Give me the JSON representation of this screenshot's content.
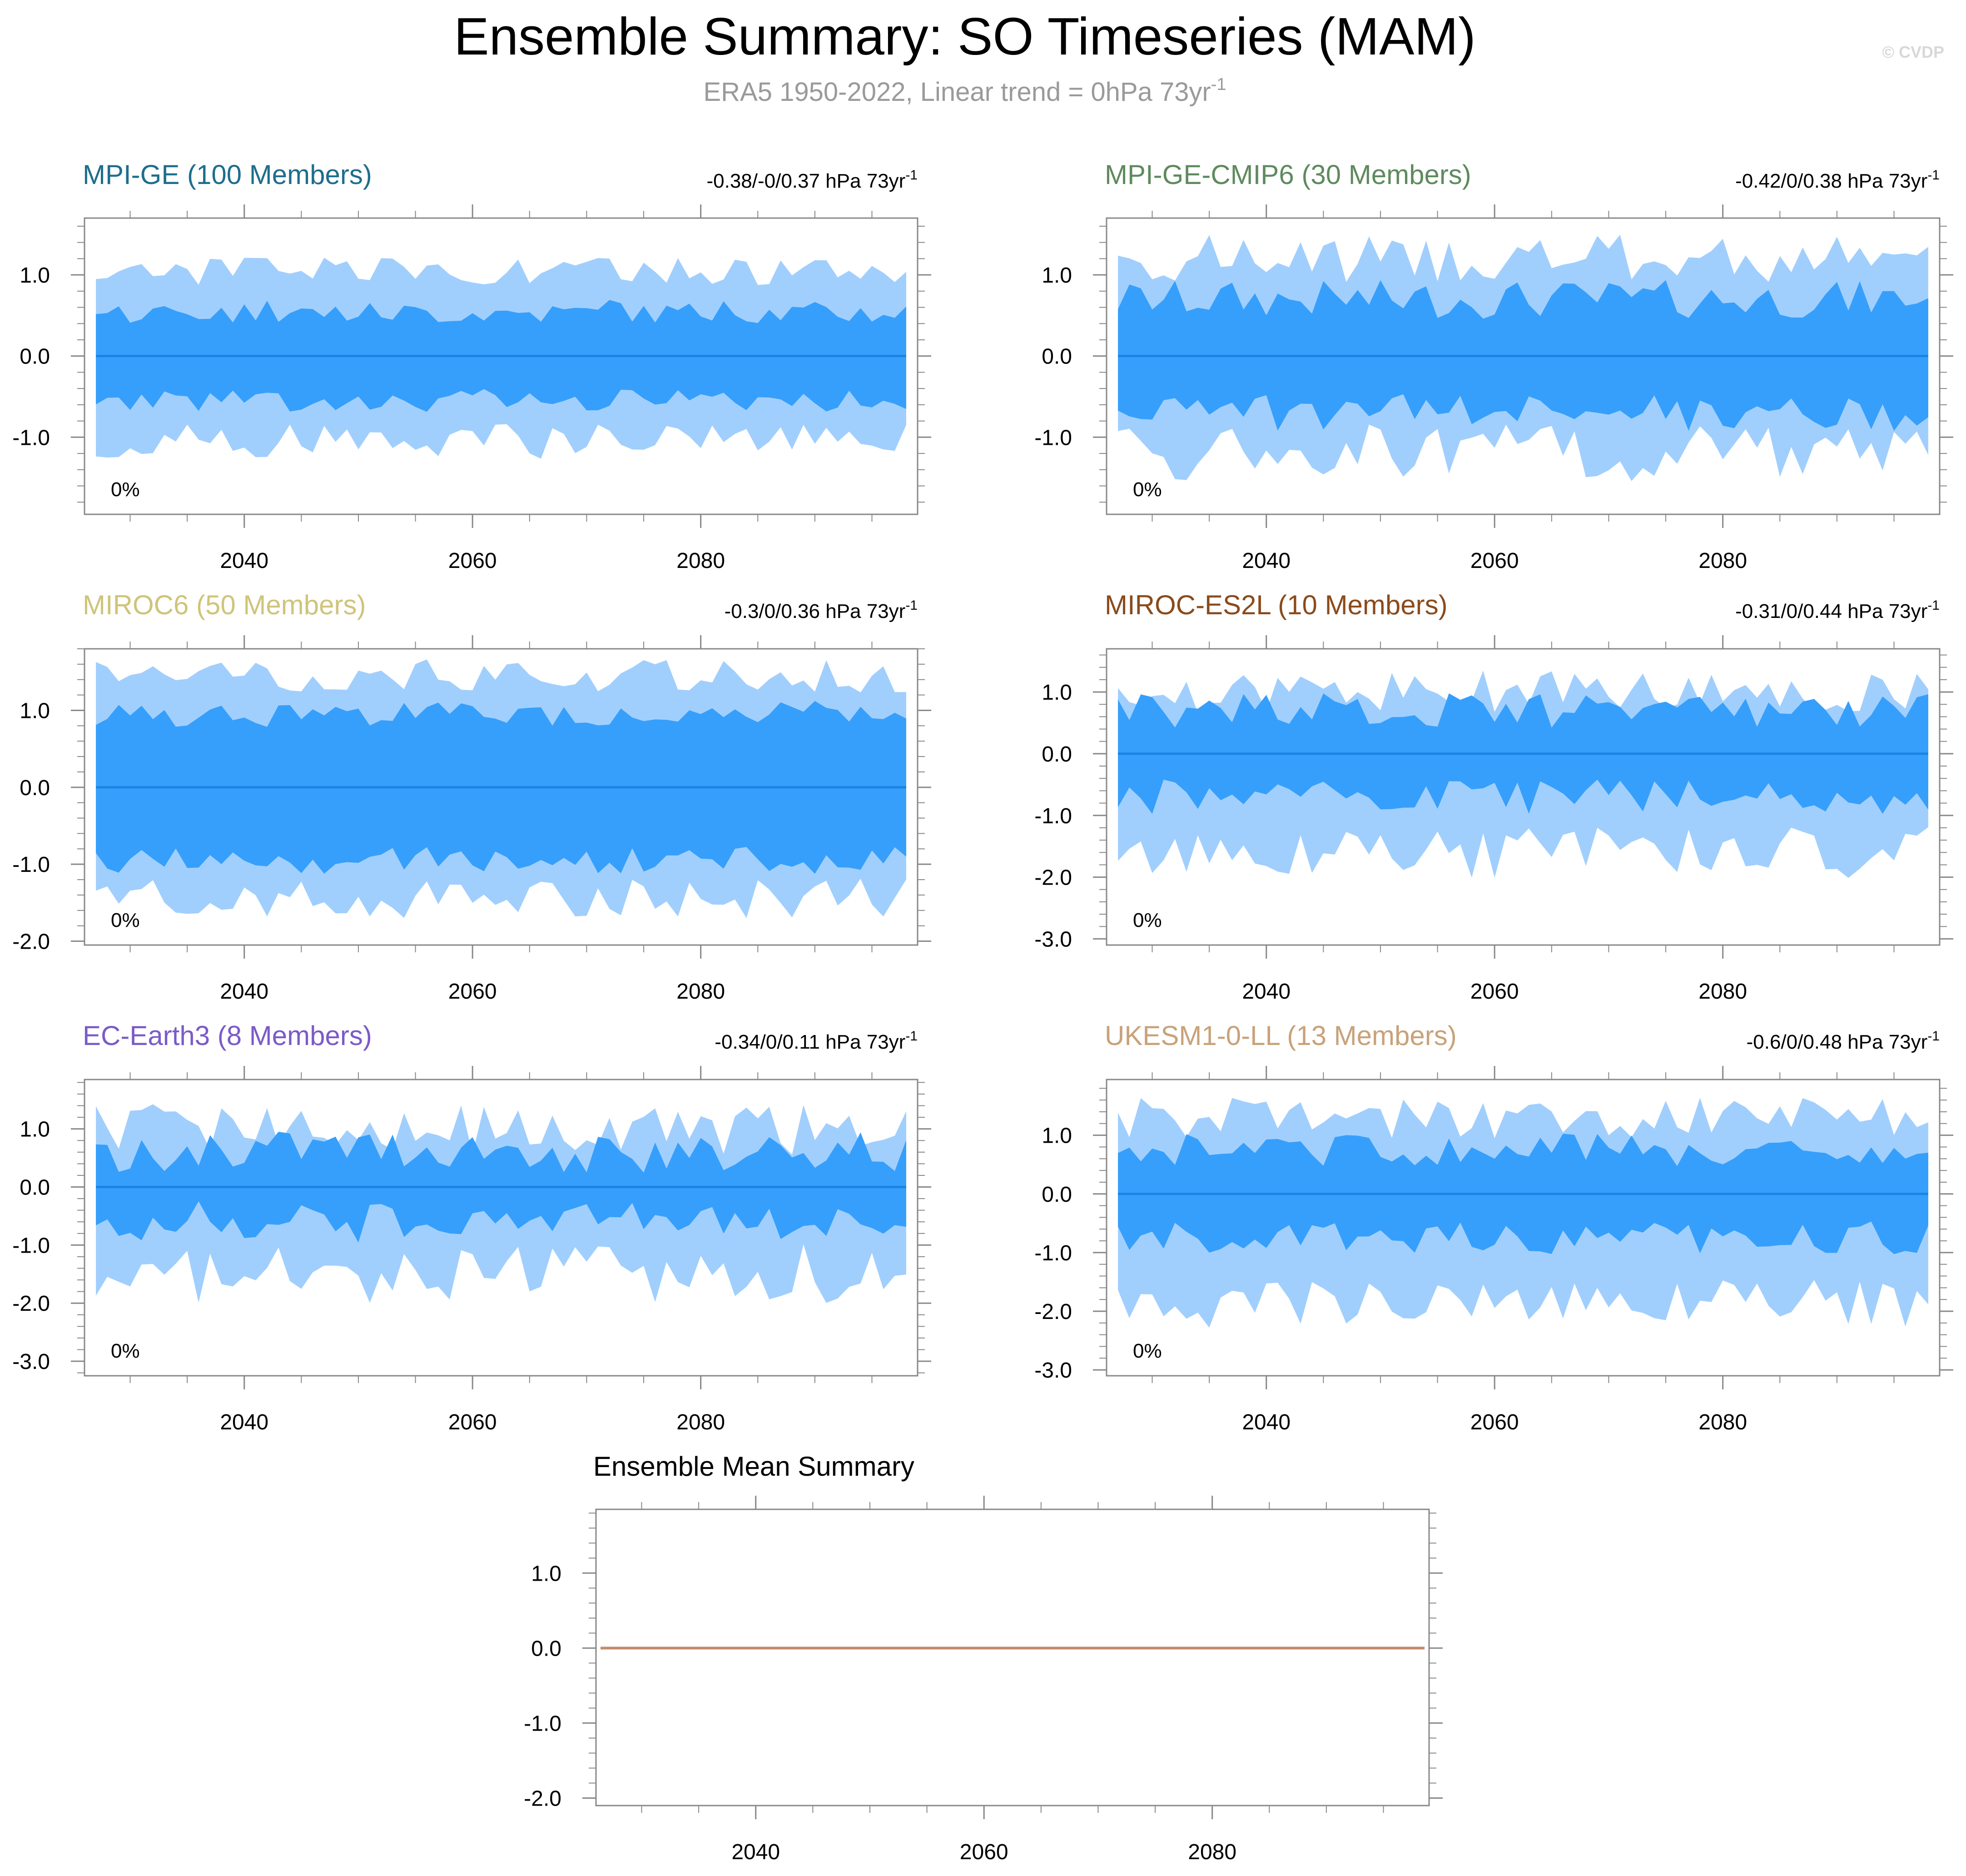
{
  "header": {
    "title": "Ensemble Summary: SO Timeseries (MAM)",
    "subtitle_main": "ERA5 1950-2022, Linear trend = 0hPa 73yr",
    "subtitle_sup": "-1",
    "copyright": "© CVDP"
  },
  "colors": {
    "outer_band": "#a1cffd",
    "inner_band": "#369ffb",
    "zero_line": "#1a84e4",
    "mean_line": "#c48a6c",
    "axis": "#888888"
  },
  "chart_data": [
    {
      "type": "area",
      "id": "mpi-ge",
      "title": "MPI-GE (100 Members)",
      "title_color": "#1e6e8c",
      "stat_main": "-0.38/-0/0.37 hPa 73yr",
      "stat_sup": "-1",
      "percent_label": "0%",
      "xlim": [
        2026,
        2099
      ],
      "xticks": [
        2040,
        2060,
        2080
      ],
      "ylim": [
        -1.95,
        1.7
      ],
      "yticks": [
        1.0,
        0.0,
        -1.0
      ],
      "ytick_labels": [
        "1.0",
        "0.0",
        "-1.0"
      ],
      "outer_amp": 1.05,
      "inner_amp": 0.55,
      "var": 0.18,
      "seed": 3
    },
    {
      "type": "area",
      "id": "mpi-ge-cmip6",
      "title": "MPI-GE-CMIP6 (30 Members)",
      "title_color": "#5f8a5e",
      "stat_main": "-0.42/0/0.38 hPa 73yr",
      "stat_sup": "-1",
      "percent_label": "0%",
      "xlim": [
        2026,
        2099
      ],
      "xticks": [
        2040,
        2060,
        2080
      ],
      "ylim": [
        -1.95,
        1.7
      ],
      "yticks": [
        1.0,
        0.0,
        -1.0
      ],
      "ytick_labels": [
        "1.0",
        "0.0",
        "-1.0"
      ],
      "outer_amp": 1.2,
      "inner_amp": 0.7,
      "var": 0.3,
      "seed": 7
    },
    {
      "type": "area",
      "id": "miroc6",
      "title": "MIROC6 (50 Members)",
      "title_color": "#cfc47a",
      "stat_main": "-0.3/0/0.36 hPa 73yr",
      "stat_sup": "-1",
      "percent_label": "0%",
      "xlim": [
        2026,
        2099
      ],
      "xticks": [
        2040,
        2060,
        2080
      ],
      "ylim": [
        -2.05,
        1.8
      ],
      "yticks": [
        1.0,
        0.0,
        -1.0,
        -2.0
      ],
      "ytick_labels": [
        "1.0",
        "0.0",
        "-1.0",
        "-2.0"
      ],
      "outer_amp": 1.45,
      "inner_amp": 0.95,
      "var": 0.22,
      "seed": 11
    },
    {
      "type": "area",
      "id": "miroc-es2l",
      "title": "MIROC-ES2L (10 Members)",
      "title_color": "#8a4b1c",
      "stat_main": "-0.31/0/0.44 hPa 73yr",
      "stat_sup": "-1",
      "percent_label": "0%",
      "xlim": [
        2026,
        2099
      ],
      "xticks": [
        2040,
        2060,
        2080
      ],
      "ylim": [
        -3.1,
        1.7
      ],
      "yticks": [
        1.0,
        0.0,
        -1.0,
        -2.0,
        -3.0
      ],
      "ytick_labels": [
        "1.0",
        "0.0",
        "-1.0",
        "-2.0",
        "-3.0"
      ],
      "outer_amp": 1.0,
      "inner_amp": 0.7,
      "var": 0.35,
      "skew": 1.6,
      "seed": 19
    },
    {
      "type": "area",
      "id": "ec-earth3",
      "title": "EC-Earth3 (8 Members)",
      "title_color": "#7b5bc8",
      "stat_main": "-0.34/0/0.11 hPa 73yr",
      "stat_sup": "-1",
      "percent_label": "0%",
      "xlim": [
        2026,
        2099
      ],
      "xticks": [
        2040,
        2060,
        2080
      ],
      "ylim": [
        -3.25,
        1.85
      ],
      "yticks": [
        1.0,
        0.0,
        -1.0,
        -2.0,
        -3.0
      ],
      "ytick_labels": [
        "1.0",
        "0.0",
        "-1.0",
        "-2.0",
        "-3.0"
      ],
      "outer_amp": 1.0,
      "inner_amp": 0.6,
      "var": 0.45,
      "skew": 1.5,
      "seed": 23
    },
    {
      "type": "area",
      "id": "ukesm1-0-ll",
      "title": "UKESM1-0-LL (13 Members)",
      "title_color": "#c8a27a",
      "stat_main": "-0.6/0/0.48 hPa 73yr",
      "stat_sup": "-1",
      "percent_label": "0%",
      "xlim": [
        2026,
        2099
      ],
      "xticks": [
        2040,
        2060,
        2080
      ],
      "ylim": [
        -3.1,
        1.95
      ],
      "yticks": [
        1.0,
        0.0,
        -1.0,
        -2.0,
        -3.0
      ],
      "ytick_labels": [
        "1.0",
        "0.0",
        "-1.0",
        "-2.0",
        "-3.0"
      ],
      "outer_amp": 1.3,
      "inner_amp": 0.75,
      "var": 0.35,
      "skew": 1.45,
      "seed": 31
    },
    {
      "type": "line",
      "id": "ensemble-mean",
      "title": "Ensemble Mean Summary",
      "xlim": [
        2026,
        2099
      ],
      "xticks": [
        2040,
        2060,
        2080
      ],
      "ylim": [
        -2.1,
        1.85
      ],
      "yticks": [
        1.0,
        0.0,
        -1.0,
        -2.0
      ],
      "ytick_labels": [
        "1.0",
        "0.0",
        "-1.0",
        "-2.0"
      ],
      "series": [
        {
          "name": "ensemble mean",
          "x": [
            2026,
            2099
          ],
          "y": [
            0.0,
            0.0
          ]
        }
      ]
    }
  ]
}
